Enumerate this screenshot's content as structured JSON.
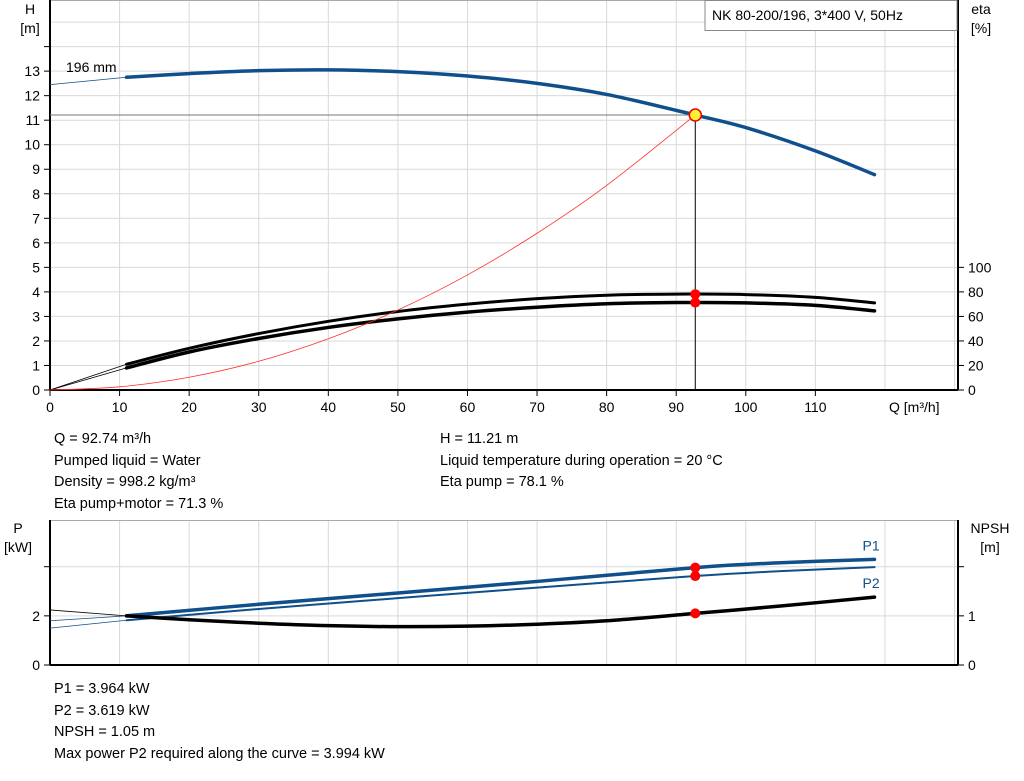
{
  "title": "NK 80-200/196, 3*400 V, 50Hz",
  "colors": {
    "head": "#0f4f8c",
    "eta": "#000000",
    "system": "#ff3030",
    "duty": "#ff0000",
    "duty_fill_top": "#ffee33",
    "grid": "#d9d9d9",
    "p": "#0f4f8c",
    "npsh": "#000000"
  },
  "chart_data": [
    {
      "type": "line",
      "xlabel": "Q [m³/h]",
      "ylabel_left": [
        "H",
        "[m]"
      ],
      "ylabel_right": [
        "eta",
        "[%]"
      ],
      "xlim": [
        0,
        130.5
      ],
      "ylim_left": [
        0,
        15.9
      ],
      "ylim_right": [
        0,
        318
      ],
      "x_ticks": [
        0,
        10,
        20,
        30,
        40,
        50,
        60,
        70,
        80,
        90,
        100,
        110
      ],
      "y_ticks_left": [
        0,
        1,
        2,
        3,
        4,
        5,
        6,
        7,
        8,
        9,
        10,
        11,
        12,
        13
      ],
      "y_ticks_right": [
        0,
        20,
        40,
        60,
        80,
        100
      ],
      "grid": true,
      "annotation": "196 mm",
      "series": [
        {
          "key": "head",
          "axis": "left",
          "x": [
            11,
            20,
            30,
            40,
            50,
            60,
            70,
            80,
            90,
            92.74,
            100,
            110,
            118.5
          ],
          "y": [
            12.75,
            12.9,
            13.02,
            13.05,
            12.98,
            12.8,
            12.5,
            12.05,
            11.4,
            11.21,
            10.7,
            9.75,
            8.78
          ],
          "extension": {
            "x": [
              0,
              11
            ],
            "y": [
              12.45,
              12.75
            ]
          }
        },
        {
          "key": "eta_pump",
          "axis": "right",
          "x": [
            11,
            20,
            30,
            40,
            50,
            60,
            70,
            80,
            90,
            100,
            110,
            118.5
          ],
          "y": [
            21,
            34,
            46,
            56,
            64,
            70,
            74.5,
            77.3,
            78.2,
            77.8,
            75.5,
            71
          ],
          "extension": {
            "x": [
              0,
              11
            ],
            "y": [
              0,
              21
            ]
          }
        },
        {
          "key": "eta_pump_motor",
          "axis": "right",
          "x": [
            11,
            20,
            30,
            40,
            50,
            60,
            70,
            80,
            90,
            100,
            110,
            118.5
          ],
          "y": [
            18,
            31,
            42,
            51,
            58,
            63.5,
            67.5,
            70.3,
            71.3,
            71,
            69,
            64.5
          ],
          "extension": {
            "x": [
              0,
              11
            ],
            "y": [
              0,
              18
            ]
          }
        },
        {
          "key": "system",
          "axis": "left",
          "x": [
            0,
            10,
            20,
            30,
            40,
            50,
            60,
            70,
            80,
            92.74
          ],
          "y": [
            0,
            0.13,
            0.52,
            1.17,
            2.09,
            3.26,
            4.69,
            6.39,
            8.34,
            11.21
          ]
        }
      ],
      "duty_point": {
        "Q": 92.74,
        "H": 11.21,
        "eta_pump": 78.1,
        "eta_pump_motor": 71.3
      }
    },
    {
      "type": "line",
      "ylabel_left": [
        "P",
        "[kW]"
      ],
      "ylabel_right": [
        "NPSH",
        "[m]"
      ],
      "xlim": [
        0,
        130.5
      ],
      "ylim_left": [
        0,
        5.9
      ],
      "ylim_right": [
        0,
        2.95
      ],
      "y_ticks_left": [
        {
          "v": 0,
          "label": "0"
        },
        {
          "v": 2,
          "label": "2"
        },
        {
          "v": 4,
          "label": ""
        }
      ],
      "y_ticks_right": [
        {
          "v": 0,
          "label": "0"
        },
        {
          "v": 1,
          "label": "1"
        },
        {
          "v": 2,
          "label": ""
        }
      ],
      "grid": true,
      "series": [
        {
          "key": "P1",
          "name": "P1",
          "axis": "left",
          "x": [
            11,
            30,
            50,
            70,
            92.74,
            105,
            118.5
          ],
          "y": [
            2.0,
            2.47,
            2.93,
            3.4,
            3.964,
            4.16,
            4.3
          ],
          "extension": {
            "x": [
              0,
              11
            ],
            "y": [
              1.8,
              2.0
            ]
          }
        },
        {
          "key": "P2",
          "name": "P2",
          "axis": "left",
          "x": [
            11,
            30,
            50,
            70,
            92.74,
            105,
            118.5
          ],
          "y": [
            1.82,
            2.28,
            2.72,
            3.15,
            3.619,
            3.82,
            3.98
          ],
          "extension": {
            "x": [
              0,
              11
            ],
            "y": [
              1.5,
              1.82
            ]
          }
        },
        {
          "key": "NPSH",
          "axis": "right",
          "x": [
            11,
            20,
            30,
            40,
            50,
            60,
            70,
            80,
            92.74,
            105,
            118.5
          ],
          "y": [
            1.0,
            0.92,
            0.85,
            0.8,
            0.78,
            0.79,
            0.83,
            0.9,
            1.05,
            1.2,
            1.38
          ],
          "extension": {
            "x": [
              0,
              11
            ],
            "y": [
              1.12,
              1.0
            ]
          }
        }
      ],
      "duty_point": {
        "Q": 92.74,
        "P1": 3.964,
        "P2": 3.619,
        "NPSH": 1.05
      }
    }
  ],
  "info_top_left": [
    "Q = 92.74 m³/h",
    "Pumped liquid = Water",
    "Density = 998.2 kg/m³",
    "Eta pump+motor = 71.3 %"
  ],
  "info_top_right": [
    "H = 11.21 m",
    "Liquid temperature during operation = 20 °C",
    "Eta pump = 78.1 %"
  ],
  "info_bottom": [
    "P1 = 3.964 kW",
    "P2 = 3.619 kW",
    "NPSH = 1.05 m",
    "Max power P2 required along the curve = 3.994 kW"
  ]
}
